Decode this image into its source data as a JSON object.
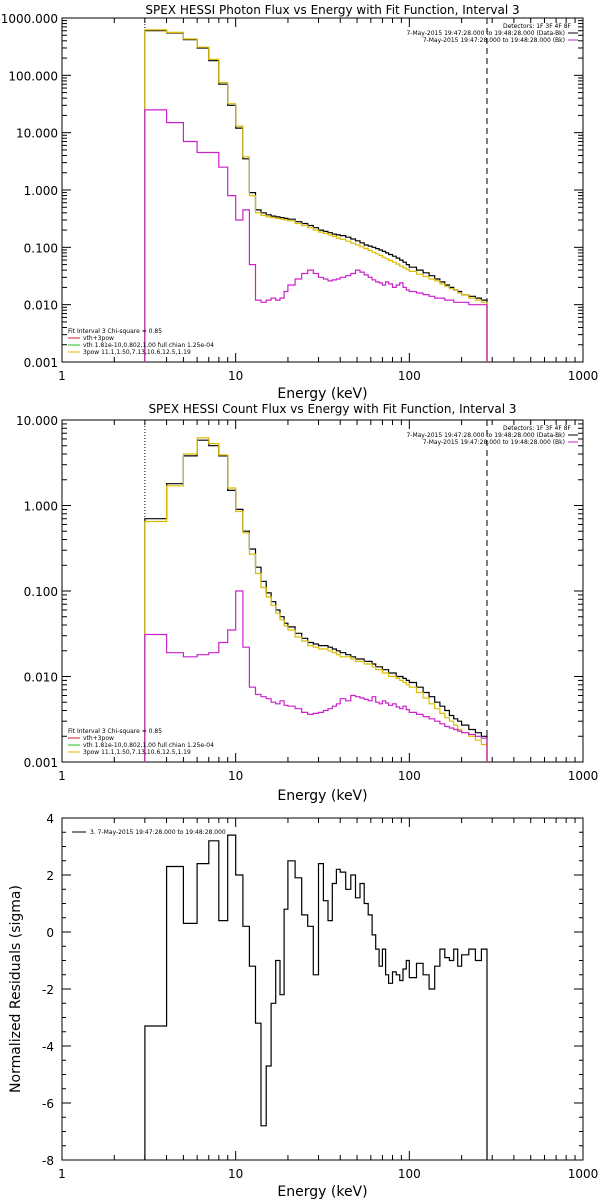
{
  "chart_data": [
    {
      "type": "line",
      "title": "SPEX HESSI Photon Flux vs Energy with Fit Function, Interval 3",
      "xlabel": "Energy (keV)",
      "ylabel": "",
      "xscale": "log",
      "yscale": "log",
      "xlim": [
        1,
        1000
      ],
      "ylim": [
        0.001,
        1000
      ],
      "xticks": [
        "1",
        "10",
        "100",
        "1000"
      ],
      "yticks": [
        "0.001",
        "0.010",
        "0.100",
        "1.000",
        "10.000",
        "100.000",
        "1000.000"
      ],
      "fit_marker_lines": [
        3,
        280
      ],
      "detector_label": "Detectors: 1F 3F 4F 8F",
      "legend_right": [
        {
          "text": "7-May-2015 19:47:28.000 to 19:48:28.000 (Data-Bk)",
          "color": "#000000"
        },
        {
          "text": "7-May-2015 19:47:28.000 to 19:48:28.000 (Bk)",
          "color": "#cc22cc"
        }
      ],
      "legend_left": [
        {
          "text": "Fit Interval 3   Chi-square = 0.85",
          "color": null
        },
        {
          "text": "vth+3pow",
          "color": "#cc2222"
        },
        {
          "text": "vth 1.81e-10,0.802,1.00  full chian 1.25e-04",
          "color": "#22bb22"
        },
        {
          "text": "3pow 11.1,1.50,7.13,10.6,12.5,1.19",
          "color": "#ddbb00"
        }
      ],
      "series": [
        {
          "name": "Data-Bk",
          "color": "#000000",
          "edges": [
            3,
            4,
            5,
            6,
            7,
            8,
            9,
            10,
            11,
            12,
            13,
            14,
            15,
            16,
            17,
            18,
            19,
            20,
            22,
            24,
            26,
            28,
            30,
            32,
            34,
            36,
            38,
            40,
            43,
            46,
            49,
            52,
            55,
            58,
            61,
            64,
            67,
            70,
            73,
            76,
            80,
            84,
            88,
            92,
            96,
            100,
            110,
            120,
            130,
            140,
            150,
            160,
            170,
            180,
            190,
            200,
            220,
            240,
            260,
            280
          ],
          "values": [
            600,
            550,
            420,
            300,
            180,
            70,
            30,
            12,
            3.5,
            0.9,
            0.45,
            0.4,
            0.37,
            0.35,
            0.34,
            0.33,
            0.32,
            0.31,
            0.28,
            0.26,
            0.24,
            0.22,
            0.2,
            0.19,
            0.18,
            0.17,
            0.165,
            0.16,
            0.15,
            0.14,
            0.13,
            0.12,
            0.11,
            0.105,
            0.1,
            0.095,
            0.09,
            0.085,
            0.08,
            0.075,
            0.07,
            0.065,
            0.06,
            0.055,
            0.05,
            0.045,
            0.04,
            0.036,
            0.032,
            0.028,
            0.025,
            0.022,
            0.02,
            0.018,
            0.017,
            0.015,
            0.014,
            0.013,
            0.012
          ]
        },
        {
          "name": "Fit",
          "color": "#ddbb00",
          "edges": [
            3,
            4,
            5,
            6,
            7,
            8,
            9,
            10,
            11,
            12,
            13,
            14,
            15,
            16,
            17,
            18,
            19,
            20,
            22,
            24,
            26,
            28,
            30,
            32,
            34,
            36,
            38,
            40,
            43,
            46,
            49,
            52,
            55,
            58,
            61,
            64,
            67,
            70,
            73,
            76,
            80,
            84,
            88,
            92,
            96,
            100,
            110,
            120,
            130,
            140,
            150,
            160,
            170,
            180,
            190,
            200,
            220,
            240,
            260,
            280
          ],
          "values": [
            620,
            560,
            430,
            310,
            190,
            75,
            32,
            13,
            3.8,
            0.8,
            0.4,
            0.36,
            0.34,
            0.33,
            0.32,
            0.31,
            0.3,
            0.29,
            0.26,
            0.24,
            0.22,
            0.2,
            0.185,
            0.175,
            0.165,
            0.155,
            0.145,
            0.138,
            0.128,
            0.118,
            0.11,
            0.102,
            0.095,
            0.088,
            0.082,
            0.077,
            0.072,
            0.067,
            0.063,
            0.059,
            0.055,
            0.051,
            0.047,
            0.044,
            0.041,
            0.038,
            0.034,
            0.031,
            0.028,
            0.026,
            0.023,
            0.021,
            0.019,
            0.018,
            0.016,
            0.015,
            0.013,
            0.012,
            0.011
          ]
        },
        {
          "name": "Bk",
          "color": "#cc22cc",
          "edges": [
            3,
            4,
            5,
            6,
            7,
            8,
            9,
            10,
            11,
            12,
            13,
            14,
            15,
            16,
            17,
            18,
            19,
            20,
            22,
            24,
            26,
            28,
            30,
            32,
            34,
            36,
            38,
            40,
            43,
            46,
            49,
            52,
            55,
            58,
            61,
            64,
            67,
            70,
            73,
            76,
            80,
            84,
            88,
            92,
            96,
            100,
            110,
            120,
            130,
            140,
            150,
            160,
            170,
            180,
            190,
            200,
            220,
            240,
            260,
            280
          ],
          "values": [
            25,
            15,
            7,
            4.5,
            4.5,
            2.5,
            0.8,
            0.3,
            0.45,
            0.05,
            0.012,
            0.011,
            0.012,
            0.013,
            0.012,
            0.013,
            0.017,
            0.022,
            0.028,
            0.035,
            0.04,
            0.035,
            0.03,
            0.028,
            0.026,
            0.027,
            0.028,
            0.03,
            0.032,
            0.035,
            0.04,
            0.037,
            0.033,
            0.03,
            0.027,
            0.025,
            0.024,
            0.022,
            0.025,
            0.023,
            0.02,
            0.022,
            0.024,
            0.02,
            0.018,
            0.017,
            0.016,
            0.015,
            0.014,
            0.013,
            0.013,
            0.012,
            0.012,
            0.011,
            0.011,
            0.011,
            0.01,
            0.01,
            0.01
          ]
        }
      ]
    },
    {
      "type": "line",
      "title": "SPEX HESSI Count Flux vs Energy with Fit Function, Interval 3",
      "xlabel": "Energy (keV)",
      "ylabel": "",
      "xscale": "log",
      "yscale": "log",
      "xlim": [
        1,
        1000
      ],
      "ylim": [
        0.001,
        10
      ],
      "xticks": [
        "1",
        "10",
        "100",
        "1000"
      ],
      "yticks": [
        "0.001",
        "0.010",
        "0.100",
        "1.000",
        "10.000"
      ],
      "fit_marker_lines": [
        3,
        280
      ],
      "detector_label": "Detectors: 1F 3F 4F 8F",
      "legend_right": [
        {
          "text": "7-May-2015 19:47:28.000 to 19:48:28.000 (Data-Bk)",
          "color": "#000000"
        },
        {
          "text": "7-May-2015 19:47:28.000 to 19:48:28.000 (Bk)",
          "color": "#cc22cc"
        }
      ],
      "legend_left": [
        {
          "text": "Fit Interval 3   Chi-square = 0.85",
          "color": null
        },
        {
          "text": "vth+3pow",
          "color": "#cc2222"
        },
        {
          "text": "vth 1.81e-10,0.802,1.00  full chian 1.25e-04",
          "color": "#22bb22"
        },
        {
          "text": "3pow 11.1,1.50,7.13,10.6,12.5,1.19",
          "color": "#ddbb00"
        }
      ],
      "series": [
        {
          "name": "Data-Bk",
          "color": "#000000",
          "edges": [
            3,
            4,
            5,
            6,
            7,
            8,
            9,
            10,
            11,
            12,
            13,
            14,
            15,
            16,
            17,
            18,
            19,
            20,
            22,
            24,
            26,
            28,
            30,
            32,
            34,
            36,
            38,
            40,
            43,
            46,
            49,
            52,
            55,
            58,
            61,
            64,
            67,
            70,
            73,
            76,
            80,
            84,
            88,
            92,
            96,
            100,
            110,
            120,
            130,
            140,
            150,
            160,
            170,
            180,
            190,
            200,
            220,
            240,
            260,
            280
          ],
          "values": [
            0.7,
            1.8,
            3.8,
            5.8,
            5.0,
            3.8,
            1.5,
            0.9,
            0.5,
            0.31,
            0.19,
            0.13,
            0.095,
            0.075,
            0.06,
            0.05,
            0.042,
            0.038,
            0.032,
            0.028,
            0.025,
            0.024,
            0.023,
            0.023,
            0.022,
            0.021,
            0.02,
            0.019,
            0.018,
            0.017,
            0.016,
            0.016,
            0.015,
            0.015,
            0.014,
            0.013,
            0.013,
            0.012,
            0.012,
            0.011,
            0.011,
            0.01,
            0.01,
            0.0095,
            0.009,
            0.0085,
            0.0075,
            0.0065,
            0.0058,
            0.005,
            0.0045,
            0.004,
            0.0035,
            0.0032,
            0.003,
            0.0027,
            0.0024,
            0.0022,
            0.002
          ]
        },
        {
          "name": "Fit",
          "color": "#ddbb00",
          "edges": [
            3,
            4,
            5,
            6,
            7,
            8,
            9,
            10,
            11,
            12,
            13,
            14,
            15,
            16,
            17,
            18,
            19,
            20,
            22,
            24,
            26,
            28,
            30,
            32,
            34,
            36,
            38,
            40,
            43,
            46,
            49,
            52,
            55,
            58,
            61,
            64,
            67,
            70,
            73,
            76,
            80,
            84,
            88,
            92,
            96,
            100,
            110,
            120,
            130,
            140,
            150,
            160,
            170,
            180,
            190,
            200,
            220,
            240,
            260,
            280
          ],
          "values": [
            0.65,
            1.7,
            4.0,
            6.2,
            5.3,
            3.9,
            1.6,
            0.85,
            0.48,
            0.27,
            0.16,
            0.11,
            0.085,
            0.068,
            0.055,
            0.046,
            0.039,
            0.035,
            0.029,
            0.026,
            0.023,
            0.022,
            0.021,
            0.021,
            0.02,
            0.019,
            0.018,
            0.017,
            0.017,
            0.016,
            0.015,
            0.015,
            0.014,
            0.014,
            0.013,
            0.012,
            0.012,
            0.011,
            0.011,
            0.01,
            0.01,
            0.0095,
            0.009,
            0.0085,
            0.008,
            0.0075,
            0.0065,
            0.0056,
            0.0048,
            0.0042,
            0.0037,
            0.0033,
            0.003,
            0.0027,
            0.0024,
            0.0022,
            0.002,
            0.0018,
            0.0016
          ]
        },
        {
          "name": "Bk",
          "color": "#cc22cc",
          "edges": [
            3,
            4,
            5,
            6,
            7,
            8,
            9,
            10,
            11,
            12,
            13,
            14,
            15,
            16,
            17,
            18,
            19,
            20,
            22,
            24,
            26,
            28,
            30,
            32,
            34,
            36,
            38,
            40,
            43,
            46,
            49,
            52,
            55,
            58,
            61,
            64,
            67,
            70,
            73,
            76,
            80,
            84,
            88,
            92,
            96,
            100,
            110,
            120,
            130,
            140,
            150,
            160,
            170,
            180,
            190,
            200,
            220,
            240,
            260,
            280
          ],
          "values": [
            0.031,
            0.019,
            0.017,
            0.018,
            0.019,
            0.025,
            0.035,
            0.1,
            0.022,
            0.0075,
            0.0062,
            0.0058,
            0.0055,
            0.005,
            0.0048,
            0.0052,
            0.0046,
            0.0045,
            0.0042,
            0.0038,
            0.0036,
            0.0037,
            0.0038,
            0.004,
            0.0042,
            0.0045,
            0.0048,
            0.0055,
            0.0052,
            0.006,
            0.0058,
            0.0056,
            0.0054,
            0.0052,
            0.0058,
            0.005,
            0.0048,
            0.0052,
            0.0049,
            0.0046,
            0.0048,
            0.0044,
            0.0042,
            0.0045,
            0.0041,
            0.0038,
            0.0036,
            0.0034,
            0.0032,
            0.003,
            0.0028,
            0.0026,
            0.0025,
            0.0024,
            0.0023,
            0.0022,
            0.0021,
            0.002,
            0.0019
          ]
        }
      ]
    },
    {
      "type": "line",
      "title": "",
      "xlabel": "Energy (keV)",
      "ylabel": "Normalized Residuals (sigma)",
      "xscale": "log",
      "yscale": "linear",
      "xlim": [
        1,
        1000
      ],
      "ylim": [
        -8,
        4
      ],
      "xticks": [
        "1",
        "10",
        "100",
        "1000"
      ],
      "yticks": [
        "-8",
        "-6",
        "-4",
        "-2",
        "0",
        "2",
        "4"
      ],
      "legend": [
        {
          "text": "3.  7-May-2015 19:47:28.000 to 19:48:28.000",
          "color": "#000000"
        }
      ],
      "series": [
        {
          "name": "",
          "color": "#000000",
          "edges": [
            3,
            4,
            5,
            6,
            7,
            8,
            9,
            10,
            11,
            12,
            13,
            14,
            15,
            16,
            17,
            18,
            19,
            20,
            22,
            24,
            26,
            28,
            30,
            32,
            34,
            36,
            38,
            40,
            43,
            46,
            49,
            52,
            55,
            58,
            61,
            64,
            67,
            70,
            73,
            76,
            80,
            84,
            88,
            92,
            96,
            100,
            110,
            120,
            130,
            140,
            150,
            160,
            170,
            180,
            190,
            200,
            220,
            240,
            260,
            280
          ],
          "values": [
            -3.3,
            2.3,
            0.3,
            2.4,
            3.2,
            0.4,
            3.4,
            2.0,
            0.2,
            -1.2,
            -3.2,
            -6.8,
            -4.7,
            -2.5,
            -1.0,
            -2.2,
            0.8,
            2.5,
            1.9,
            0.6,
            0.2,
            -1.5,
            2.4,
            1.1,
            0.4,
            1.7,
            2.2,
            2.1,
            1.5,
            2.0,
            1.2,
            1.7,
            1.0,
            0.6,
            -0.1,
            -0.6,
            -1.2,
            -0.6,
            -1.5,
            -1.8,
            -1.4,
            -1.5,
            -1.7,
            -1.3,
            -1.0,
            -1.6,
            -1.1,
            -1.5,
            -2.0,
            -1.2,
            -0.6,
            -0.9,
            -1.0,
            -0.6,
            -1.2,
            -0.8,
            -0.6,
            -1.0,
            -0.6
          ]
        }
      ]
    }
  ]
}
